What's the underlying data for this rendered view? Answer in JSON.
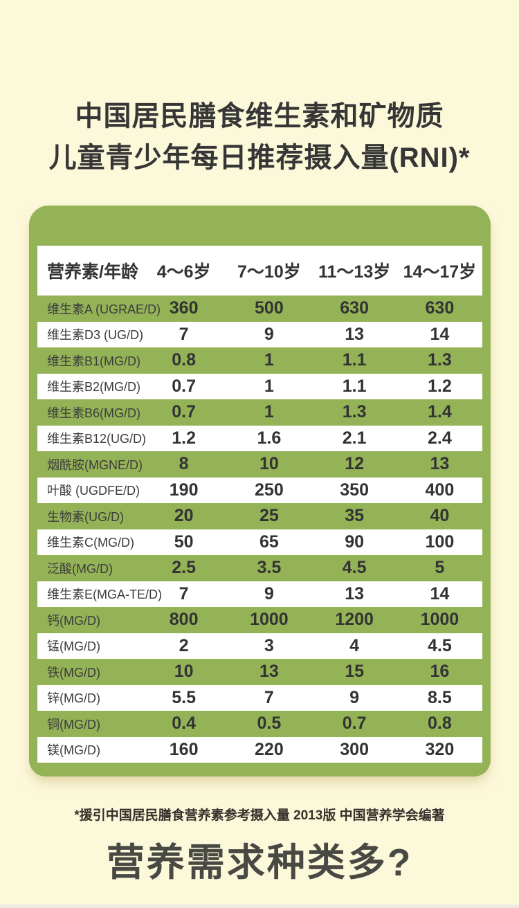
{
  "page": {
    "background_color": "#fcf8da",
    "accent_green": "#94b357",
    "text_dark": "#363636"
  },
  "title": {
    "line1": "中国居民膳食维生素和矿物质",
    "line2": "儿童青少年每日推荐摄入量(RNI)*"
  },
  "table": {
    "headers": [
      "营养素/年龄",
      "4～6岁",
      "7～10岁",
      "11～13岁",
      "14～17岁"
    ],
    "rows": [
      {
        "label": "维生素A (UGRAE/D)",
        "values": [
          "360",
          "500",
          "630",
          "630"
        ]
      },
      {
        "label": "维生素D3 (UG/D)",
        "values": [
          "7",
          "9",
          "13",
          "14"
        ]
      },
      {
        "label": "维生素B1(MG/D)",
        "values": [
          "0.8",
          "1",
          "1.1",
          "1.3"
        ]
      },
      {
        "label": "维生素B2(MG/D)",
        "values": [
          "0.7",
          "1",
          "1.1",
          "1.2"
        ]
      },
      {
        "label": "维生素B6(MG/D)",
        "values": [
          "0.7",
          "1",
          "1.3",
          "1.4"
        ]
      },
      {
        "label": "维生素B12(UG/D)",
        "values": [
          "1.2",
          "1.6",
          "2.1",
          "2.4"
        ]
      },
      {
        "label": "烟酰胺(MGNE/D)",
        "values": [
          "8",
          "10",
          "12",
          "13"
        ]
      },
      {
        "label": "叶酸 (UGDFE/D)",
        "values": [
          "190",
          "250",
          "350",
          "400"
        ]
      },
      {
        "label": "生物素(UG/D)",
        "values": [
          "20",
          "25",
          "35",
          "40"
        ]
      },
      {
        "label": "维生素C(MG/D)",
        "values": [
          "50",
          "65",
          "90",
          "100"
        ]
      },
      {
        "label": "泛酸(MG/D)",
        "values": [
          "2.5",
          "3.5",
          "4.5",
          "5"
        ]
      },
      {
        "label": "维生素E(MGA-TE/D)",
        "values": [
          "7",
          "9",
          "13",
          "14"
        ]
      },
      {
        "label": "钙(MG/D)",
        "values": [
          "800",
          "1000",
          "1200",
          "1000"
        ]
      },
      {
        "label": "锰(MG/D)",
        "values": [
          "2",
          "3",
          "4",
          "4.5"
        ]
      },
      {
        "label": "铁(MG/D)",
        "values": [
          "10",
          "13",
          "15",
          "16"
        ]
      },
      {
        "label": "锌(MG/D)",
        "values": [
          "5.5",
          "7",
          "9",
          "8.5"
        ]
      },
      {
        "label": "铜(MG/D)",
        "values": [
          "0.4",
          "0.5",
          "0.7",
          "0.8"
        ]
      },
      {
        "label": "镁(MG/D)",
        "values": [
          "160",
          "220",
          "300",
          "320"
        ]
      }
    ]
  },
  "footnote": "*援引中国居民膳食营养素参考摄入量 2013版 中国营养学会编著",
  "section_heading": "营养需求种类多?",
  "chart_data": {
    "type": "table",
    "title": "中国居民膳食维生素和矿物质儿童青少年每日推荐摄入量(RNI)",
    "columns": [
      "营养素/年龄",
      "4～6岁",
      "7～10岁",
      "11～13岁",
      "14～17岁"
    ],
    "rows": [
      [
        "维生素A (UGRAE/D)",
        360,
        500,
        630,
        630
      ],
      [
        "维生素D3 (UG/D)",
        7,
        9,
        13,
        14
      ],
      [
        "维生素B1(MG/D)",
        0.8,
        1,
        1.1,
        1.3
      ],
      [
        "维生素B2(MG/D)",
        0.7,
        1,
        1.1,
        1.2
      ],
      [
        "维生素B6(MG/D)",
        0.7,
        1,
        1.3,
        1.4
      ],
      [
        "维生素B12(UG/D)",
        1.2,
        1.6,
        2.1,
        2.4
      ],
      [
        "烟酰胺(MGNE/D)",
        8,
        10,
        12,
        13
      ],
      [
        "叶酸 (UGDFE/D)",
        190,
        250,
        350,
        400
      ],
      [
        "生物素(UG/D)",
        20,
        25,
        35,
        40
      ],
      [
        "维生素C(MG/D)",
        50,
        65,
        90,
        100
      ],
      [
        "泛酸(MG/D)",
        2.5,
        3.5,
        4.5,
        5
      ],
      [
        "维生素E(MGA-TE/D)",
        7,
        9,
        13,
        14
      ],
      [
        "钙(MG/D)",
        800,
        1000,
        1200,
        1000
      ],
      [
        "锰(MG/D)",
        2,
        3,
        4,
        4.5
      ],
      [
        "铁(MG/D)",
        10,
        13,
        15,
        16
      ],
      [
        "锌(MG/D)",
        5.5,
        7,
        9,
        8.5
      ],
      [
        "铜(MG/D)",
        0.4,
        0.5,
        0.7,
        0.8
      ],
      [
        "镁(MG/D)",
        160,
        220,
        300,
        320
      ]
    ],
    "footnote": "*援引中国居民膳食营养素参考摄入量 2013版 中国营养学会编著"
  }
}
